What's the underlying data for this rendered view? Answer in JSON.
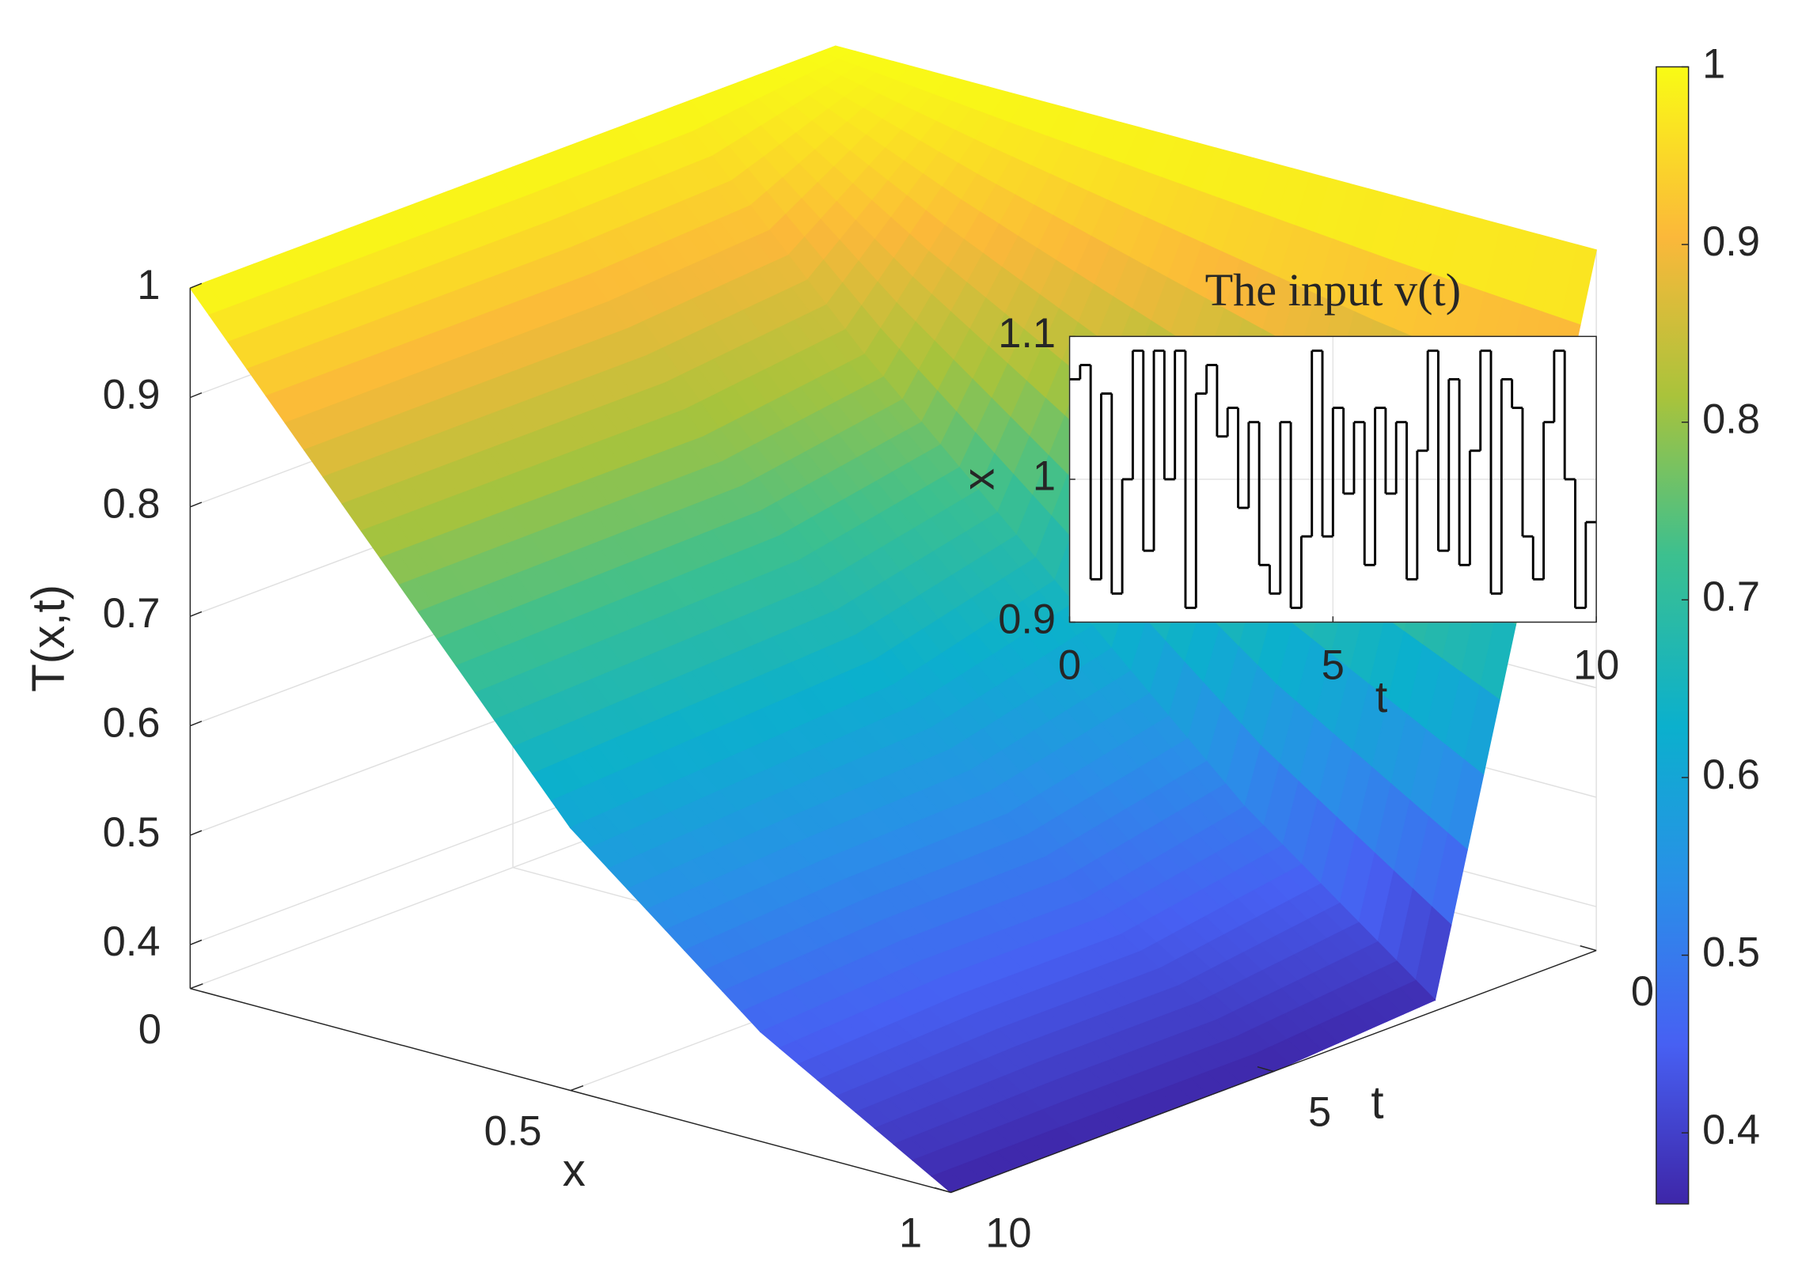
{
  "chart_data": [
    {
      "type": "surface",
      "x": [
        0,
        0.25,
        0.5,
        0.75,
        1
      ],
      "t": [
        0,
        2.5,
        5,
        7.5,
        10
      ],
      "z": [
        [
          1,
          1,
          1,
          1,
          1
        ],
        [
          1,
          0.82,
          0.66,
          0.5,
          0.37
        ],
        [
          1,
          0.8,
          0.62,
          0.47,
          0.36
        ],
        [
          1,
          0.8,
          0.61,
          0.47,
          0.36
        ],
        [
          1,
          0.8,
          0.6,
          0.46,
          0.36
        ]
      ],
      "xlabel": "x",
      "tlabel": "t",
      "zlabel": "T(x,t)",
      "xlim": [
        0,
        1
      ],
      "xticks": [
        0,
        0.5,
        1
      ],
      "tlim": [
        0,
        10
      ],
      "tticks": [
        0,
        5,
        10
      ],
      "zlim": [
        0.36,
        1
      ],
      "zticks": [
        0.4,
        0.5,
        0.6,
        0.7,
        0.8,
        0.9,
        1
      ],
      "colormap": "parula",
      "clim": [
        0.36,
        1
      ],
      "colorbar_ticks": [
        0.4,
        0.5,
        0.6,
        0.7,
        0.8,
        0.9,
        1
      ],
      "grid": true
    },
    {
      "type": "stairs",
      "title": "The input v(t)",
      "xlabel": "t",
      "ylabel": "x",
      "color": "#000000",
      "x": [
        0,
        0.2,
        0.4,
        0.6,
        0.8,
        1,
        1.2,
        1.4,
        1.6,
        1.8,
        2,
        2.2,
        2.4,
        2.6,
        2.8,
        3,
        3.2,
        3.4,
        3.6,
        3.8,
        4,
        4.2,
        4.4,
        4.6,
        4.8,
        5,
        5.2,
        5.4,
        5.6,
        5.8,
        6,
        6.2,
        6.4,
        6.6,
        6.8,
        7,
        7.2,
        7.4,
        7.6,
        7.8,
        8,
        8.2,
        8.4,
        8.6,
        8.8,
        9,
        9.2,
        9.4,
        9.6,
        9.8
      ],
      "values": [
        1.07,
        1.08,
        0.93,
        1.06,
        0.92,
        1.0,
        1.09,
        0.95,
        1.09,
        1.0,
        1.09,
        0.91,
        1.06,
        1.08,
        1.03,
        1.05,
        0.98,
        1.04,
        0.94,
        0.92,
        1.04,
        0.91,
        0.96,
        1.09,
        0.96,
        1.05,
        0.99,
        1.04,
        0.94,
        1.05,
        0.99,
        1.04,
        0.93,
        1.02,
        1.09,
        0.95,
        1.07,
        0.94,
        1.02,
        1.09,
        0.92,
        1.07,
        1.05,
        0.96,
        0.93,
        1.04,
        1.09,
        1.0,
        0.91,
        0.97
      ],
      "xlim": [
        0,
        10
      ],
      "xticks": [
        0,
        5,
        10
      ],
      "ylim": [
        0.9,
        1.1
      ],
      "yticks": [
        0.9,
        1,
        1.1
      ],
      "grid": true
    }
  ]
}
